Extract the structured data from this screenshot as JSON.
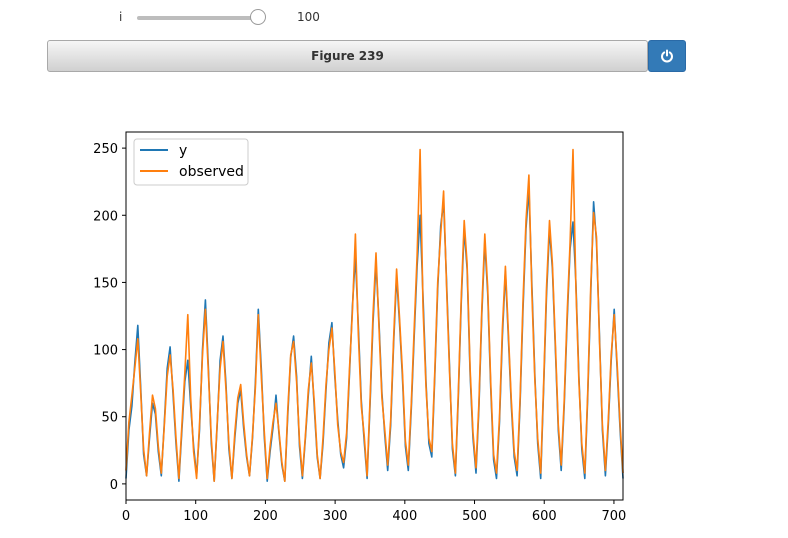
{
  "slider": {
    "label": "i",
    "value": "100",
    "fraction": 1.0
  },
  "figure": {
    "title": "Figure 239",
    "power_icon": "power-icon",
    "accent": "#337ab7"
  },
  "chart_data": {
    "type": "line",
    "xlim": [
      0,
      713
    ],
    "ylim": [
      -12,
      262
    ],
    "x_ticks": [
      0,
      100,
      200,
      300,
      400,
      500,
      600,
      700
    ],
    "y_ticks": [
      0,
      50,
      100,
      150,
      200,
      250
    ],
    "x_tick_labels": [
      "0",
      "100",
      "200",
      "300",
      "400",
      "500",
      "600",
      "700"
    ],
    "y_tick_labels": [
      "0",
      "50",
      "100",
      "150",
      "200",
      "250"
    ],
    "legend_position": "upper-left",
    "grid": false,
    "series": [
      {
        "name": "y",
        "color": "#1f77b4",
        "values": [
          4,
          40,
          58,
          90,
          118,
          72,
          22,
          6,
          34,
          60,
          52,
          24,
          6,
          44,
          86,
          102,
          66,
          30,
          2,
          40,
          76,
          92,
          58,
          28,
          6,
          40,
          100,
          137,
          88,
          30,
          2,
          44,
          92,
          110,
          74,
          26,
          4,
          34,
          60,
          70,
          42,
          20,
          6,
          34,
          76,
          130,
          86,
          36,
          2,
          24,
          42,
          66,
          38,
          14,
          2,
          50,
          94,
          110,
          80,
          28,
          4,
          34,
          66,
          95,
          58,
          20,
          4,
          30,
          70,
          105,
          120,
          80,
          48,
          22,
          12,
          34,
          82,
          132,
          170,
          118,
          62,
          32,
          4,
          60,
          120,
          165,
          122,
          68,
          36,
          10,
          44,
          104,
          155,
          120,
          80,
          28,
          10,
          56,
          110,
          162,
          200,
          140,
          76,
          30,
          20,
          80,
          145,
          192,
          210,
          150,
          88,
          26,
          6,
          64,
          136,
          190,
          160,
          82,
          34,
          8,
          56,
          126,
          180,
          142,
          72,
          18,
          4,
          46,
          110,
          158,
          110,
          60,
          20,
          6,
          60,
          130,
          190,
          220,
          150,
          82,
          30,
          4,
          70,
          140,
          190,
          160,
          100,
          40,
          10,
          58,
          120,
          175,
          195,
          150,
          80,
          26,
          4,
          64,
          140,
          210,
          180,
          110,
          40,
          6,
          44,
          92,
          130,
          86,
          40,
          4
        ]
      },
      {
        "name": "observed",
        "color": "#ff7f0e",
        "values": [
          10,
          46,
          66,
          86,
          108,
          68,
          26,
          6,
          38,
          66,
          56,
          28,
          8,
          42,
          80,
          96,
          70,
          34,
          4,
          44,
          82,
          126,
          64,
          24,
          4,
          44,
          96,
          130,
          84,
          34,
          2,
          46,
          86,
          106,
          70,
          30,
          4,
          38,
          64,
          74,
          46,
          22,
          6,
          36,
          72,
          126,
          80,
          40,
          4,
          28,
          46,
          60,
          40,
          16,
          2,
          54,
          96,
          106,
          76,
          32,
          6,
          36,
          70,
          90,
          62,
          22,
          4,
          34,
          74,
          100,
          116,
          84,
          44,
          24,
          16,
          38,
          86,
          128,
          186,
          112,
          58,
          36,
          6,
          64,
          126,
          172,
          118,
          64,
          40,
          14,
          48,
          108,
          160,
          124,
          84,
          32,
          14,
          60,
          116,
          170,
          249,
          132,
          72,
          34,
          24,
          84,
          150,
          186,
          218,
          146,
          84,
          30,
          8,
          68,
          140,
          196,
          164,
          86,
          38,
          12,
          60,
          130,
          186,
          146,
          76,
          22,
          8,
          50,
          116,
          162,
          114,
          64,
          24,
          10,
          64,
          136,
          196,
          230,
          144,
          78,
          34,
          8,
          74,
          146,
          196,
          164,
          104,
          44,
          14,
          62,
          126,
          180,
          249,
          146,
          76,
          30,
          8,
          68,
          146,
          202,
          184,
          106,
          44,
          10,
          48,
          96,
          126,
          90,
          44,
          8
        ]
      }
    ]
  }
}
